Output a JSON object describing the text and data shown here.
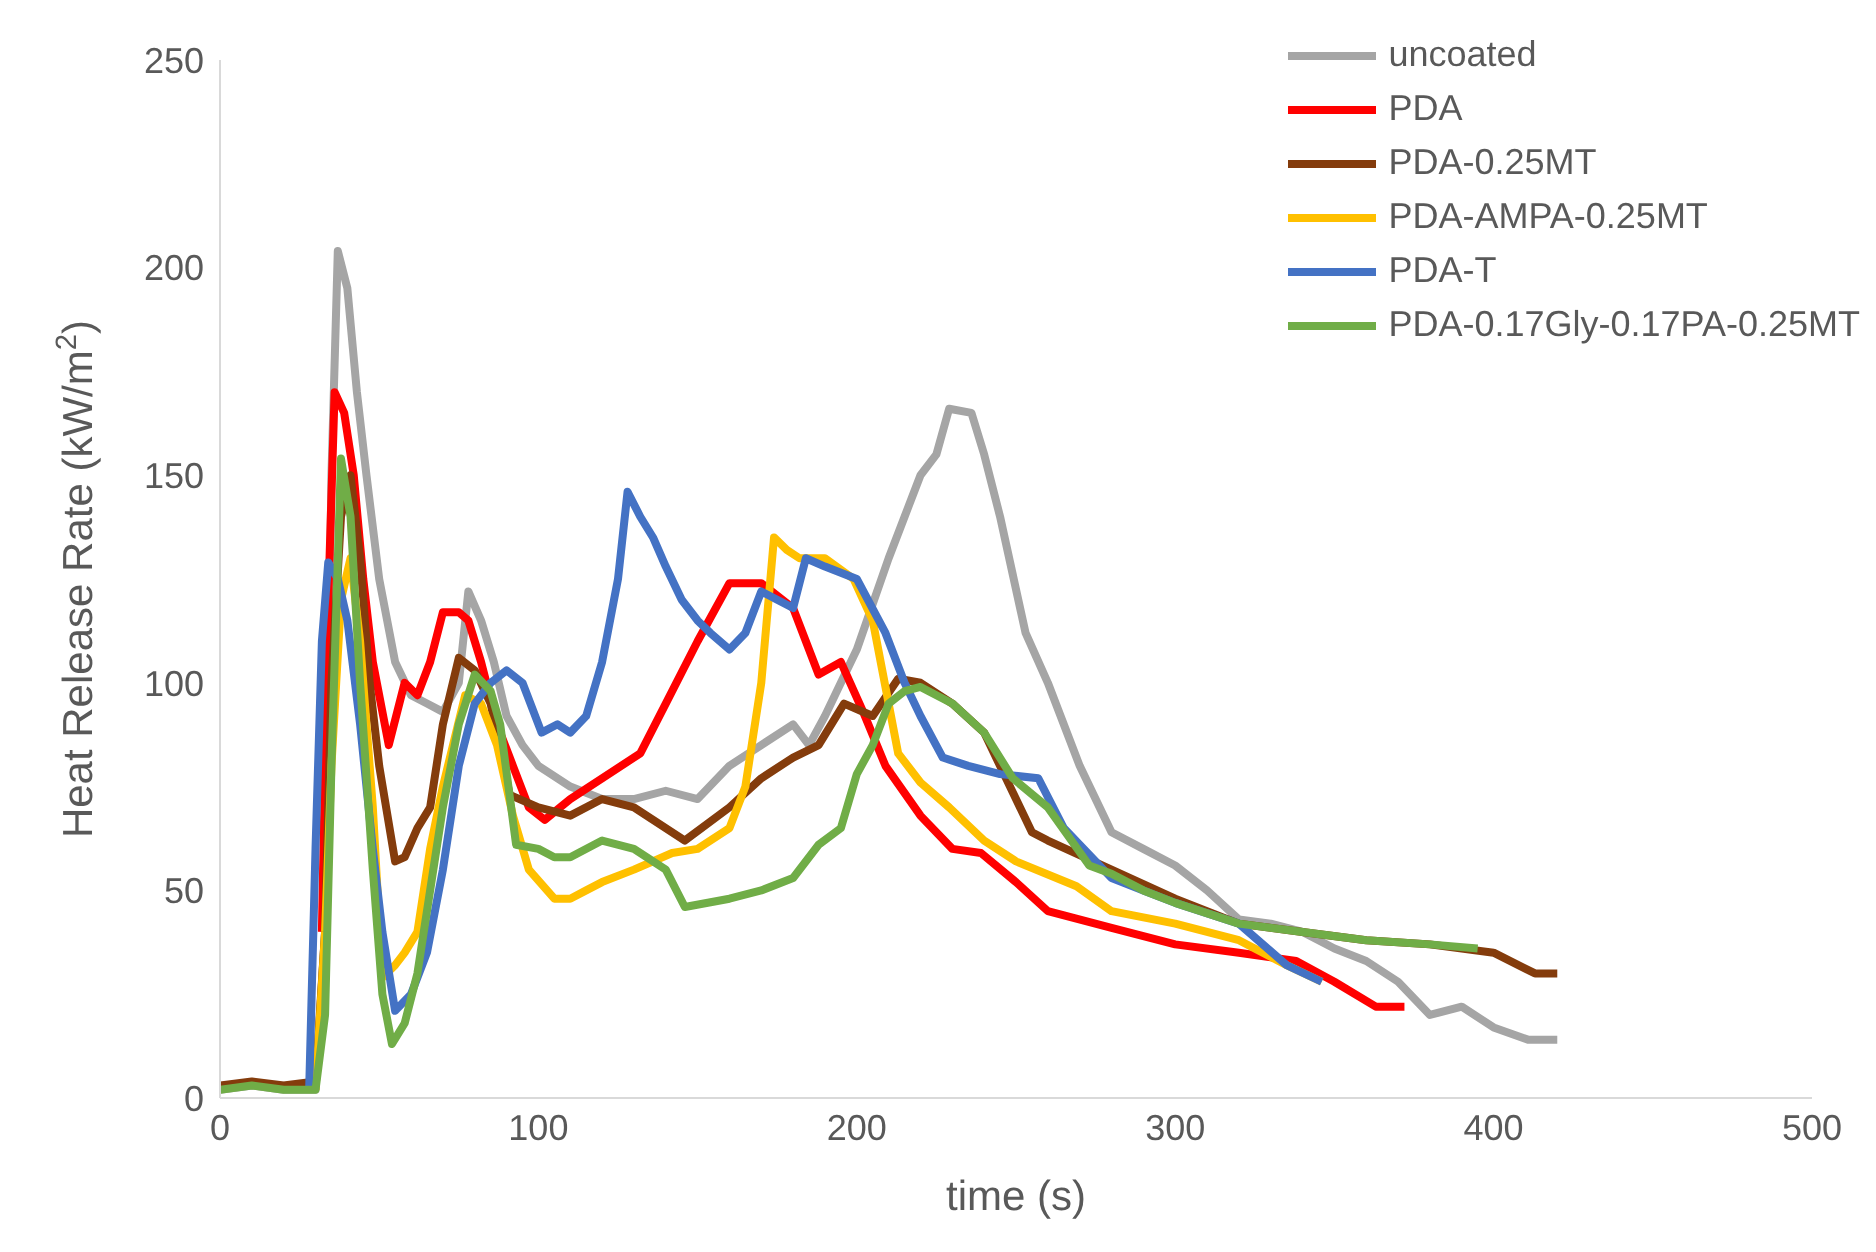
{
  "chart_data": {
    "type": "line",
    "xlabel": "time (s)",
    "ylabel": "Heat Release Rate (kW/m$^{2}$)",
    "xlim": [
      0,
      500
    ],
    "ylim": [
      0,
      250
    ],
    "xticks": [
      0,
      100,
      200,
      300,
      400,
      500
    ],
    "yticks": [
      0,
      50,
      100,
      150,
      200,
      250
    ],
    "legend": "top right",
    "marker": "none",
    "line_style": "solid",
    "series": [
      {
        "name": "uncoated",
        "color": "#a5a5a5",
        "x": [
          0,
          10,
          20,
          30,
          33,
          35,
          37,
          40,
          43,
          46,
          50,
          55,
          60,
          65,
          70,
          75,
          78,
          82,
          86,
          90,
          95,
          100,
          110,
          120,
          130,
          140,
          150,
          160,
          170,
          180,
          185,
          190,
          200,
          210,
          215,
          220,
          225,
          229,
          236,
          240,
          245,
          253,
          260,
          270,
          280,
          290,
          300,
          310,
          320,
          330,
          340,
          350,
          360,
          370,
          380,
          390,
          400,
          411,
          420
        ],
        "values": [
          2,
          3,
          2,
          2,
          40,
          150,
          204,
          195,
          170,
          150,
          125,
          105,
          97,
          95,
          93,
          100,
          122,
          115,
          105,
          92,
          85,
          80,
          75,
          72,
          72,
          74,
          72,
          80,
          85,
          90,
          85,
          92,
          108,
          130,
          140,
          150,
          155,
          166,
          165,
          155,
          140,
          112,
          100,
          80,
          64,
          60,
          56,
          50,
          43,
          42,
          40,
          36,
          33,
          28,
          20,
          22,
          17,
          14,
          14
        ]
      },
      {
        "name": "PDA",
        "color": "#ff0000",
        "x": [
          32,
          34,
          36,
          39,
          42,
          45,
          48,
          53,
          58,
          62,
          66,
          70,
          75,
          78,
          82,
          87,
          92,
          97,
          102,
          110,
          120,
          132,
          140,
          150,
          160,
          170,
          180,
          188,
          195,
          202,
          209,
          220,
          230,
          239,
          250,
          260,
          280,
          300,
          320,
          338,
          350,
          363,
          372
        ],
        "values": [
          40,
          120,
          170,
          165,
          150,
          125,
          105,
          85,
          100,
          97,
          105,
          117,
          117,
          115,
          105,
          90,
          80,
          70,
          67,
          72,
          77,
          83,
          95,
          110,
          124,
          124,
          118,
          102,
          105,
          93,
          80,
          68,
          60,
          59,
          52,
          45,
          41,
          37,
          35,
          33,
          28,
          22,
          22
        ]
      },
      {
        "name": "PDA-0.25MT",
        "color": "#843c0c",
        "x": [
          0,
          10,
          20,
          30,
          33,
          35,
          38,
          41,
          44,
          47,
          50,
          55,
          58,
          62,
          66,
          70,
          75,
          80,
          85,
          91,
          100,
          110,
          120,
          130,
          146,
          160,
          170,
          180,
          188,
          196,
          205,
          213,
          220,
          230,
          240,
          255,
          260,
          280,
          300,
          320,
          340,
          360,
          380,
          400,
          413,
          420
        ],
        "values": [
          3,
          4,
          3,
          4,
          40,
          100,
          140,
          150,
          130,
          100,
          80,
          57,
          58,
          65,
          70,
          90,
          106,
          103,
          95,
          73,
          70,
          68,
          72,
          70,
          62,
          70,
          77,
          82,
          85,
          95,
          92,
          101,
          100,
          95,
          88,
          64,
          62,
          55,
          48,
          42,
          40,
          38,
          37,
          35,
          30,
          30
        ]
      },
      {
        "name": "PDA-AMPA-0.25MT",
        "color": "#ffc000",
        "x": [
          30,
          33,
          35,
          38,
          41,
          44,
          48,
          51,
          55,
          58,
          62,
          66,
          70,
          77,
          82,
          87,
          92,
          97,
          105,
          110,
          115,
          120,
          130,
          142,
          150,
          160,
          165,
          170,
          174,
          178,
          182,
          190,
          199,
          205,
          213,
          220,
          229,
          240,
          250,
          269,
          280,
          300,
          320,
          335,
          346
        ],
        "values": [
          2,
          40,
          80,
          120,
          130,
          110,
          70,
          29,
          32,
          35,
          40,
          60,
          75,
          97,
          95,
          85,
          68,
          55,
          48,
          48,
          50,
          52,
          55,
          59,
          60,
          65,
          75,
          100,
          135,
          132,
          130,
          130,
          125,
          115,
          83,
          76,
          70,
          62,
          57,
          51,
          45,
          42,
          38,
          32,
          28
        ]
      },
      {
        "name": "PDA-T",
        "color": "#4472c4",
        "x": [
          28,
          30,
          32,
          34,
          37,
          40,
          44,
          48,
          51,
          55,
          60,
          65,
          70,
          75,
          80,
          85,
          90,
          95,
          101,
          106,
          110,
          115,
          120,
          125,
          128,
          132,
          136,
          140,
          145,
          150,
          154,
          160,
          165,
          170,
          175,
          180,
          184,
          190,
          200,
          209,
          215,
          220,
          227,
          235,
          245,
          257,
          265,
          280,
          290,
          300,
          320,
          335,
          346
        ],
        "values": [
          2,
          60,
          110,
          129,
          125,
          115,
          90,
          60,
          40,
          21,
          25,
          35,
          55,
          80,
          95,
          100,
          103,
          100,
          88,
          90,
          88,
          92,
          105,
          125,
          146,
          140,
          135,
          128,
          120,
          115,
          112,
          108,
          112,
          122,
          120,
          118,
          130,
          128,
          125,
          112,
          100,
          92,
          82,
          80,
          78,
          77,
          65,
          53,
          50,
          47,
          42,
          32,
          28
        ]
      },
      {
        "name": "PDA-0.17Gly-0.17PA-0.25MT",
        "color": "#70ad47",
        "x": [
          0,
          10,
          20,
          30,
          33,
          35,
          38,
          41,
          44,
          48,
          51,
          54,
          58,
          62,
          66,
          70,
          75,
          80,
          85,
          88,
          93,
          100,
          105,
          110,
          120,
          130,
          140,
          146,
          160,
          170,
          180,
          188,
          195,
          200,
          205,
          210,
          215,
          220,
          225,
          230,
          240,
          249,
          260,
          273,
          280,
          290,
          300,
          320,
          340,
          360,
          380,
          395
        ],
        "values": [
          2,
          3,
          2,
          2,
          20,
          80,
          154,
          140,
          100,
          55,
          25,
          13,
          18,
          30,
          50,
          70,
          90,
          102,
          98,
          90,
          61,
          60,
          58,
          58,
          62,
          60,
          55,
          46,
          48,
          50,
          53,
          61,
          65,
          78,
          85,
          95,
          98,
          99,
          97,
          95,
          88,
          77,
          70,
          56,
          54,
          50,
          47,
          42,
          40,
          38,
          37,
          36
        ]
      }
    ]
  }
}
